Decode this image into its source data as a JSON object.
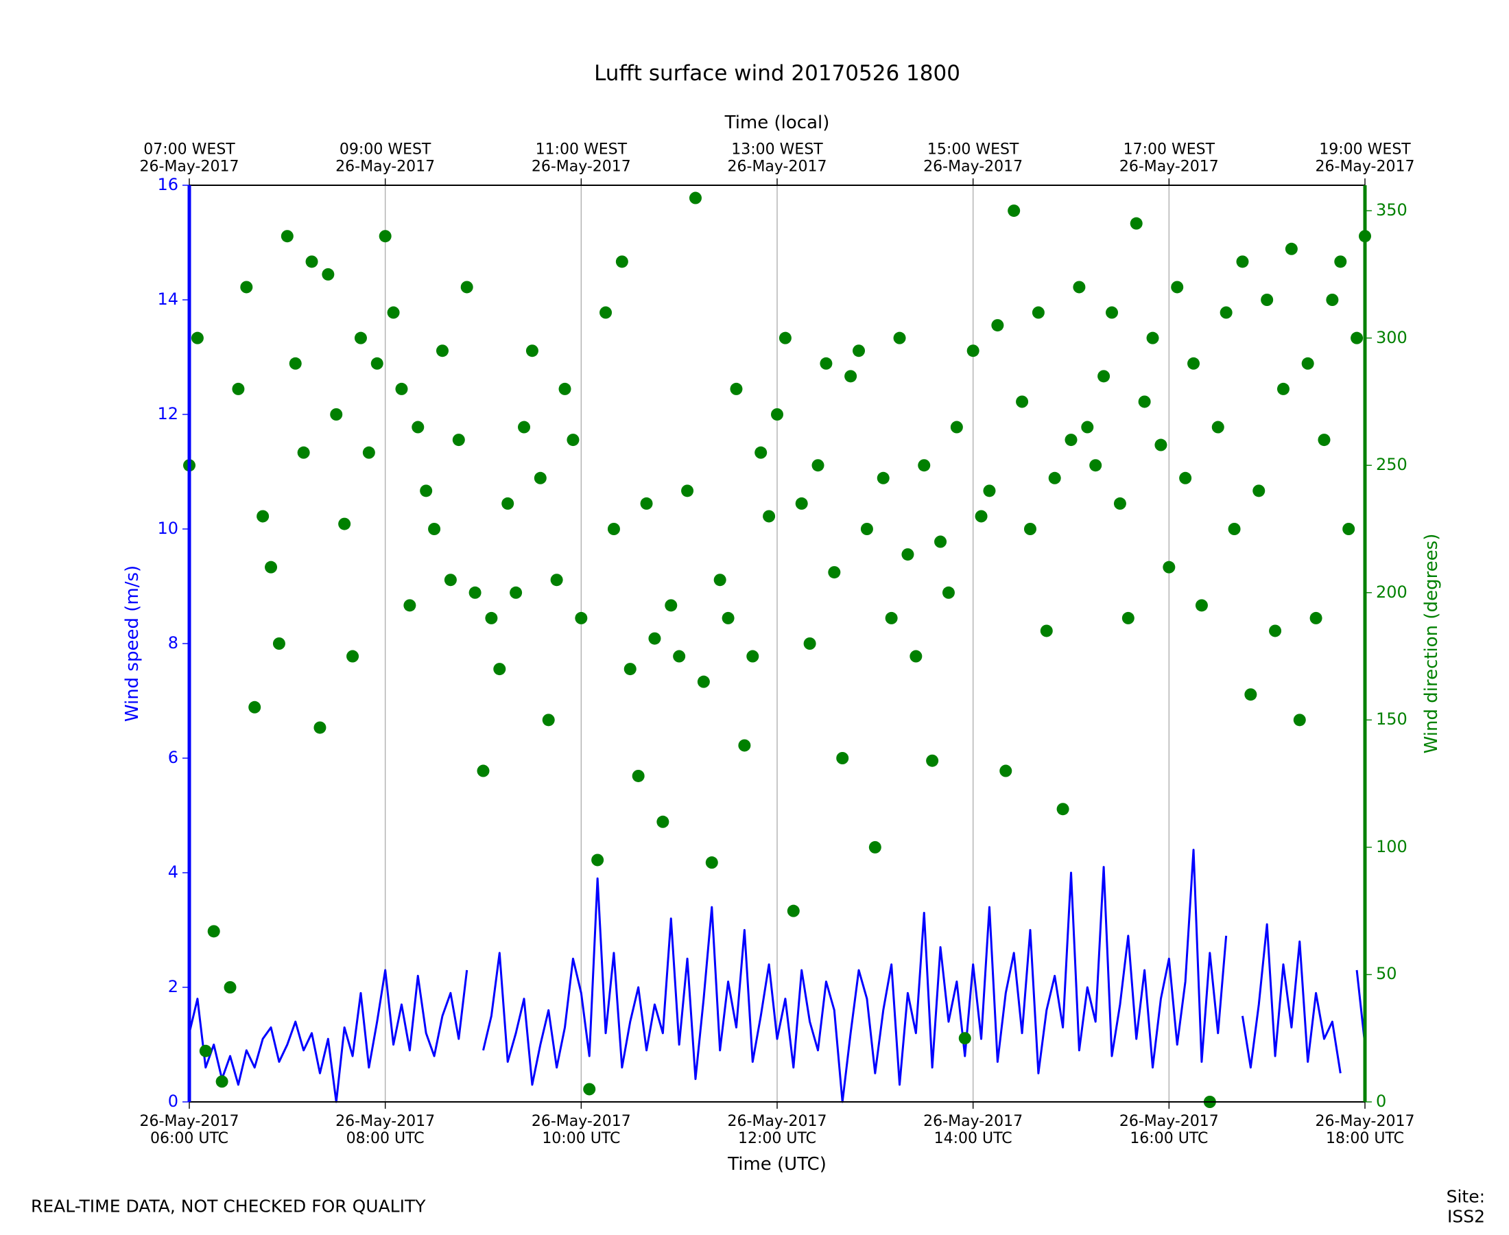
{
  "chart_data": {
    "type": "line",
    "title": "Lufft surface wind 20170526 1800",
    "xlabel": "Time (UTC)",
    "x2label": "Time (local)",
    "ylabel": "Wind speed (m/s)",
    "y2label": "Wind direction (degrees)",
    "footer_left": "REAL-TIME DATA, NOT CHECKED FOR QUALITY",
    "footer_right": "Site: ISS2",
    "grid": "x",
    "xlim": [
      "2017-05-26T06:00",
      "2017-05-26T18:00"
    ],
    "xticks": [
      {
        "value": "2017-05-26T06:00",
        "label": "26-May-2017\n06:00 UTC"
      },
      {
        "value": "2017-05-26T08:00",
        "label": "26-May-2017\n08:00 UTC"
      },
      {
        "value": "2017-05-26T10:00",
        "label": "26-May-2017\n10:00 UTC"
      },
      {
        "value": "2017-05-26T12:00",
        "label": "26-May-2017\n12:00 UTC"
      },
      {
        "value": "2017-05-26T14:00",
        "label": "26-May-2017\n14:00 UTC"
      },
      {
        "value": "2017-05-26T16:00",
        "label": "26-May-2017\n16:00 UTC"
      },
      {
        "value": "2017-05-26T18:00",
        "label": "26-May-2017\n18:00 UTC"
      }
    ],
    "x2ticks": [
      {
        "value": "2017-05-26T06:00",
        "label": "07:00 WEST\n26-May-2017"
      },
      {
        "value": "2017-05-26T08:00",
        "label": "09:00 WEST\n26-May-2017"
      },
      {
        "value": "2017-05-26T10:00",
        "label": "11:00 WEST\n26-May-2017"
      },
      {
        "value": "2017-05-26T12:00",
        "label": "13:00 WEST\n26-May-2017"
      },
      {
        "value": "2017-05-26T14:00",
        "label": "15:00 WEST\n26-May-2017"
      },
      {
        "value": "2017-05-26T16:00",
        "label": "17:00 WEST\n26-May-2017"
      },
      {
        "value": "2017-05-26T18:00",
        "label": "19:00 WEST\n26-May-2017"
      }
    ],
    "ylim": [
      0,
      16
    ],
    "yticks": [
      0,
      2,
      4,
      6,
      8,
      10,
      12,
      14,
      16
    ],
    "y2lim": [
      0,
      360
    ],
    "y2ticks": [
      0,
      50,
      100,
      150,
      200,
      250,
      300,
      350
    ],
    "ycolor": "#0000ff",
    "y2color": "#008000",
    "x": [
      "2017-05-26T06:00",
      "2017-05-26T06:05",
      "2017-05-26T06:10",
      "2017-05-26T06:15",
      "2017-05-26T06:20",
      "2017-05-26T06:25",
      "2017-05-26T06:30",
      "2017-05-26T06:35",
      "2017-05-26T06:40",
      "2017-05-26T06:45",
      "2017-05-26T06:50",
      "2017-05-26T06:55",
      "2017-05-26T07:00",
      "2017-05-26T07:05",
      "2017-05-26T07:10",
      "2017-05-26T07:15",
      "2017-05-26T07:20",
      "2017-05-26T07:25",
      "2017-05-26T07:30",
      "2017-05-26T07:35",
      "2017-05-26T07:40",
      "2017-05-26T07:45",
      "2017-05-26T07:50",
      "2017-05-26T07:55",
      "2017-05-26T08:00",
      "2017-05-26T08:05",
      "2017-05-26T08:10",
      "2017-05-26T08:15",
      "2017-05-26T08:20",
      "2017-05-26T08:25",
      "2017-05-26T08:30",
      "2017-05-26T08:35",
      "2017-05-26T08:40",
      "2017-05-26T08:45",
      "2017-05-26T08:50",
      "2017-05-26T08:55",
      "2017-05-26T09:00",
      "2017-05-26T09:05",
      "2017-05-26T09:10",
      "2017-05-26T09:15",
      "2017-05-26T09:20",
      "2017-05-26T09:25",
      "2017-05-26T09:30",
      "2017-05-26T09:35",
      "2017-05-26T09:40",
      "2017-05-26T09:45",
      "2017-05-26T09:50",
      "2017-05-26T09:55",
      "2017-05-26T10:00",
      "2017-05-26T10:05",
      "2017-05-26T10:10",
      "2017-05-26T10:15",
      "2017-05-26T10:20",
      "2017-05-26T10:25",
      "2017-05-26T10:30",
      "2017-05-26T10:35",
      "2017-05-26T10:40",
      "2017-05-26T10:45",
      "2017-05-26T10:50",
      "2017-05-26T10:55",
      "2017-05-26T11:00",
      "2017-05-26T11:05",
      "2017-05-26T11:10",
      "2017-05-26T11:15",
      "2017-05-26T11:20",
      "2017-05-26T11:25",
      "2017-05-26T11:30",
      "2017-05-26T11:35",
      "2017-05-26T11:40",
      "2017-05-26T11:45",
      "2017-05-26T11:50",
      "2017-05-26T11:55",
      "2017-05-26T12:00",
      "2017-05-26T12:05",
      "2017-05-26T12:10",
      "2017-05-26T12:15",
      "2017-05-26T12:20",
      "2017-05-26T12:25",
      "2017-05-26T12:30",
      "2017-05-26T12:35",
      "2017-05-26T12:40",
      "2017-05-26T12:45",
      "2017-05-26T12:50",
      "2017-05-26T12:55",
      "2017-05-26T13:00",
      "2017-05-26T13:05",
      "2017-05-26T13:10",
      "2017-05-26T13:15",
      "2017-05-26T13:20",
      "2017-05-26T13:25",
      "2017-05-26T13:30",
      "2017-05-26T13:35",
      "2017-05-26T13:40",
      "2017-05-26T13:45",
      "2017-05-26T13:50",
      "2017-05-26T13:55",
      "2017-05-26T14:00",
      "2017-05-26T14:05",
      "2017-05-26T14:10",
      "2017-05-26T14:15",
      "2017-05-26T14:20",
      "2017-05-26T14:25",
      "2017-05-26T14:30",
      "2017-05-26T14:35",
      "2017-05-26T14:40",
      "2017-05-26T14:45",
      "2017-05-26T14:50",
      "2017-05-26T14:55",
      "2017-05-26T15:00",
      "2017-05-26T15:05",
      "2017-05-26T15:10",
      "2017-05-26T15:15",
      "2017-05-26T15:20",
      "2017-05-26T15:25",
      "2017-05-26T15:30",
      "2017-05-26T15:35",
      "2017-05-26T15:40",
      "2017-05-26T15:45",
      "2017-05-26T15:50",
      "2017-05-26T15:55",
      "2017-05-26T16:00",
      "2017-05-26T16:05",
      "2017-05-26T16:10",
      "2017-05-26T16:15",
      "2017-05-26T16:20",
      "2017-05-26T16:25",
      "2017-05-26T16:30",
      "2017-05-26T16:35",
      "2017-05-26T16:40",
      "2017-05-26T16:45",
      "2017-05-26T16:50",
      "2017-05-26T16:55",
      "2017-05-26T17:00",
      "2017-05-26T17:05",
      "2017-05-26T17:10",
      "2017-05-26T17:15",
      "2017-05-26T17:20",
      "2017-05-26T17:25",
      "2017-05-26T17:30",
      "2017-05-26T17:35",
      "2017-05-26T17:40",
      "2017-05-26T17:45",
      "2017-05-26T17:50",
      "2017-05-26T17:55",
      "2017-05-26T18:00"
    ],
    "series": [
      {
        "color": "#0000ff",
        "style": "line",
        "values": [
          1.2,
          1.8,
          0.6,
          1.0,
          0.4,
          0.8,
          0.3,
          0.9,
          0.6,
          1.1,
          1.3,
          0.7,
          1.0,
          1.4,
          0.9,
          1.2,
          0.5,
          1.1,
          0.0,
          1.3,
          0.8,
          1.9,
          0.6,
          1.4,
          2.3,
          1.0,
          1.7,
          0.9,
          2.2,
          1.2,
          0.8,
          1.5,
          1.9,
          1.1,
          2.3,
          null,
          0.9,
          1.5,
          2.6,
          0.7,
          1.2,
          1.8,
          0.3,
          1.0,
          1.6,
          0.6,
          1.3,
          2.5,
          1.9,
          0.8,
          3.9,
          1.2,
          2.6,
          0.6,
          1.4,
          2.0,
          0.9,
          1.7,
          1.2,
          3.2,
          1.0,
          2.5,
          0.4,
          1.8,
          3.4,
          0.9,
          2.1,
          1.3,
          3.0,
          0.7,
          1.5,
          2.4,
          1.1,
          1.8,
          0.6,
          2.3,
          1.4,
          0.9,
          2.1,
          1.6,
          0.0,
          1.2,
          2.3,
          1.8,
          0.5,
          1.6,
          2.4,
          0.3,
          1.9,
          1.2,
          3.3,
          0.6,
          2.7,
          1.4,
          2.1,
          0.8,
          2.4,
          1.1,
          3.4,
          0.7,
          1.9,
          2.6,
          1.2,
          3.0,
          0.5,
          1.6,
          2.2,
          1.3,
          4.0,
          0.9,
          2.0,
          1.4,
          4.1,
          0.8,
          1.7,
          2.9,
          1.1,
          2.3,
          0.6,
          1.8,
          2.5,
          1.0,
          2.1,
          4.4,
          0.7,
          2.6,
          1.2,
          2.9,
          null,
          1.5,
          0.6,
          1.7,
          3.1,
          0.8,
          2.4,
          1.3,
          2.8,
          0.7,
          1.9,
          1.1,
          1.4,
          0.5,
          null,
          2.3,
          1.0
        ]
      },
      {
        "color": "#008000",
        "style": "points",
        "axis": "y2",
        "values": [
          250,
          300,
          20,
          67,
          8,
          45,
          280,
          320,
          155,
          230,
          210,
          180,
          340,
          290,
          255,
          330,
          147,
          325,
          270,
          227,
          175,
          300,
          255,
          290,
          340,
          310,
          280,
          195,
          265,
          240,
          225,
          295,
          205,
          260,
          320,
          200,
          130,
          190,
          170,
          235,
          200,
          265,
          295,
          245,
          150,
          205,
          280,
          260,
          190,
          5,
          95,
          310,
          225,
          330,
          170,
          128,
          235,
          182,
          110,
          195,
          175,
          240,
          355,
          165,
          94,
          205,
          190,
          280,
          140,
          175,
          255,
          230,
          270,
          300,
          75,
          235,
          180,
          250,
          290,
          208,
          135,
          285,
          295,
          225,
          100,
          245,
          190,
          300,
          215,
          175,
          250,
          134,
          220,
          200,
          265,
          25,
          295,
          230,
          240,
          305,
          130,
          350,
          275,
          225,
          310,
          185,
          245,
          115,
          260,
          320,
          265,
          250,
          285,
          310,
          235,
          190,
          345,
          275,
          300,
          258,
          210,
          320,
          245,
          290,
          195,
          0,
          265,
          310,
          225,
          330,
          160,
          240,
          315,
          185,
          280,
          335,
          150,
          290,
          190,
          260,
          315,
          330,
          225,
          300,
          340
        ]
      }
    ]
  }
}
